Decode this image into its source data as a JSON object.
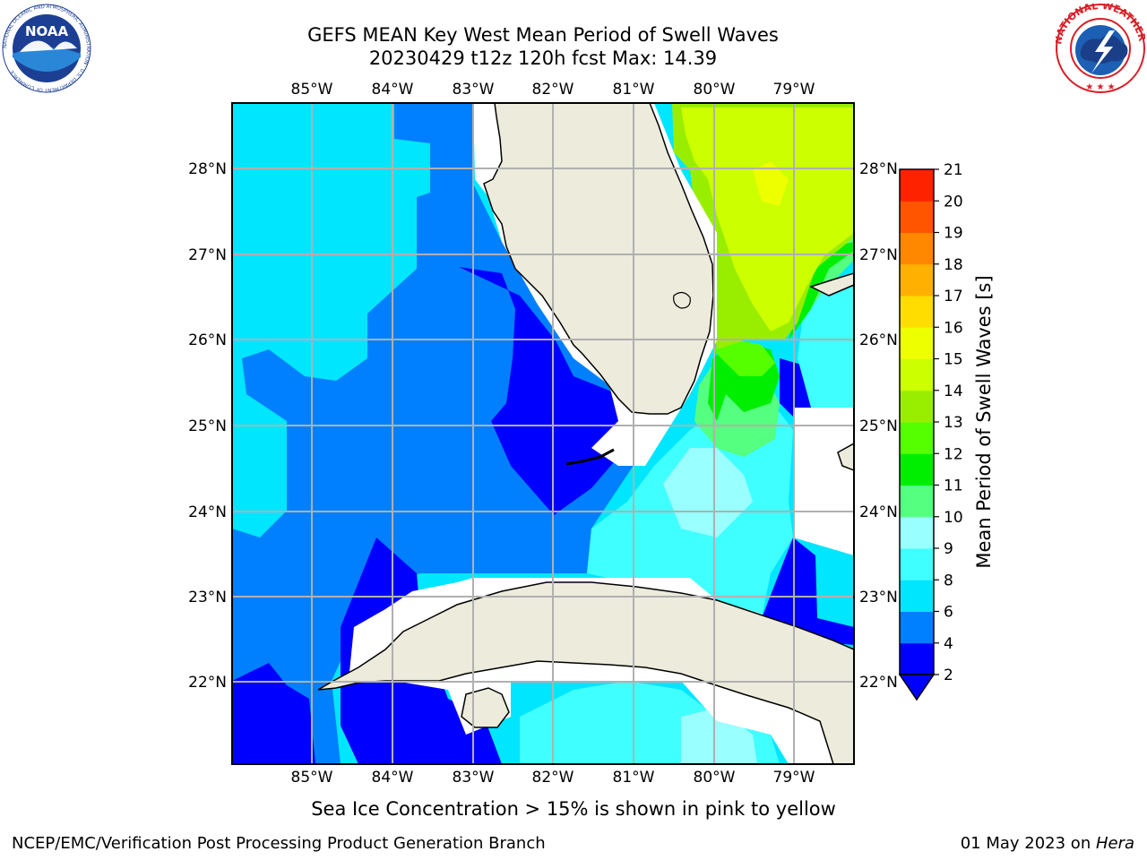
{
  "title": {
    "line1": "GEFS MEAN Key West Mean Period of Swell Waves",
    "line2": "20230429 t12z 120h fcst   Max: 14.39"
  },
  "map": {
    "longitude_labels": [
      "85°W",
      "84°W",
      "83°W",
      "82°W",
      "81°W",
      "80°W",
      "79°W"
    ],
    "latitude_labels": [
      "28°N",
      "27°N",
      "26°N",
      "25°N",
      "24°N",
      "23°N",
      "22°N"
    ],
    "land_color": "#ecebdc",
    "grid_color": "#b0b0b0"
  },
  "colorbar": {
    "label": "Mean Period of Swell Waves [s]",
    "ticks": [
      "2",
      "4",
      "6",
      "8",
      "9",
      "10",
      "11",
      "12",
      "13",
      "14",
      "15",
      "16",
      "17",
      "18",
      "19",
      "20",
      "21"
    ],
    "colors": [
      "#0000ff",
      "#0080ff",
      "#00e6ff",
      "#40ffff",
      "#99ffff",
      "#55ff7f",
      "#00ee00",
      "#55ff00",
      "#99ee00",
      "#ccff00",
      "#eeff00",
      "#ffdd00",
      "#ffb000",
      "#ff8800",
      "#ff5500",
      "#ff2200"
    ],
    "under_color": "#0000ff"
  },
  "notes": {
    "sea_ice": "Sea Ice Concentration > 15% is shown in pink to yellow"
  },
  "footer": {
    "left": "NCEP/EMC/Verification Post Processing Product Generation Branch",
    "date": "01 May 2023 on ",
    "machine": "Hera"
  },
  "logos": {
    "noaa": "NOAA",
    "noaa_ring": "NATIONAL OCEANIC AND ATMOSPHERIC ADMINISTRATION · U.S. DEPARTMENT OF COMMERCE",
    "nws_ring": "NATIONAL WEATHER SERVICE"
  }
}
